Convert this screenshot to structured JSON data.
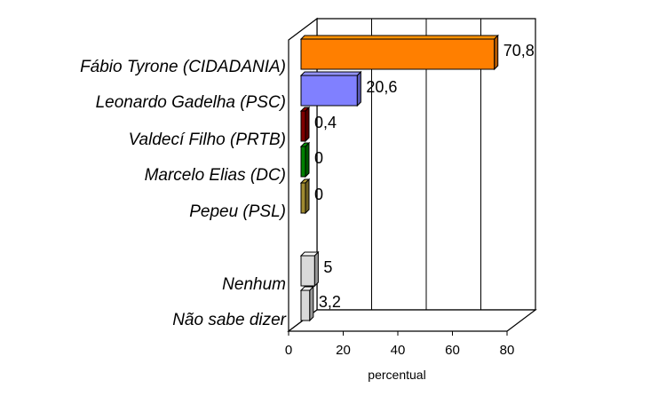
{
  "chart_data": {
    "type": "bar",
    "orientation": "horizontal",
    "three_d": true,
    "categories": [
      "Fábio Tyrone (CIDADANIA)",
      "Leonardo Gadelha (PSC)",
      "Valdecí Filho (PRTB)",
      "Marcelo Elias (DC)",
      "Pepeu (PSL)",
      "Nenhum",
      "Não sabe dizer"
    ],
    "values": [
      70.8,
      20.6,
      0.4,
      0,
      0,
      5,
      3.2
    ],
    "value_labels": [
      "70,8",
      "20,6",
      "0,4",
      "0",
      "0",
      "5",
      "3,2"
    ],
    "colors": [
      "#ff7f00",
      "#8080ff",
      "#800000",
      "#008000",
      "#a08a30",
      "#d9d9d9",
      "#d9d9d9"
    ],
    "xlabel": "percentual",
    "xlim": [
      0,
      80
    ],
    "xticks": [
      "0",
      "20",
      "40",
      "60",
      "80"
    ],
    "grid": true,
    "legend": "none"
  }
}
